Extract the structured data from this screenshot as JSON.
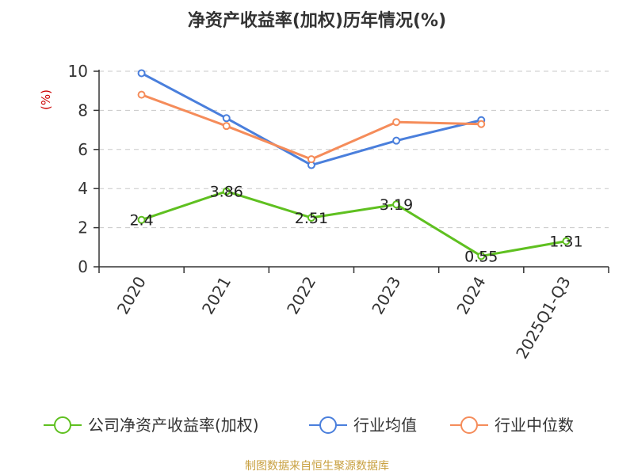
{
  "title": "净资产收益率(加权)历年情况(%)",
  "source": "制图数据来自恒生聚源数据库",
  "chart_data": {
    "type": "line",
    "title": "净资产收益率(加权)历年情况(%)",
    "ylabel": "(%)",
    "xlabel": "",
    "categories": [
      "2020",
      "2021",
      "2022",
      "2023",
      "2024",
      "2025Q1-Q3"
    ],
    "ylim": [
      0,
      10
    ],
    "yticks": [
      0,
      2,
      4,
      6,
      8,
      10
    ],
    "grid": true,
    "legend": "bottom",
    "series": [
      {
        "name": "公司净资产收益率(加权)",
        "color": "#5fc020",
        "values": [
          2.4,
          3.86,
          2.51,
          3.19,
          0.55,
          1.31
        ],
        "labels": [
          "2.4",
          "3.86",
          "2.51",
          "3.19",
          "0.55",
          "1.31"
        ]
      },
      {
        "name": "行业均值",
        "color": "#4a7fdc",
        "values": [
          9.9,
          7.6,
          5.2,
          6.45,
          7.5,
          null
        ]
      },
      {
        "name": "行业中位数",
        "color": "#f58c5a",
        "values": [
          8.8,
          7.2,
          5.5,
          7.4,
          7.3,
          null
        ]
      }
    ]
  }
}
